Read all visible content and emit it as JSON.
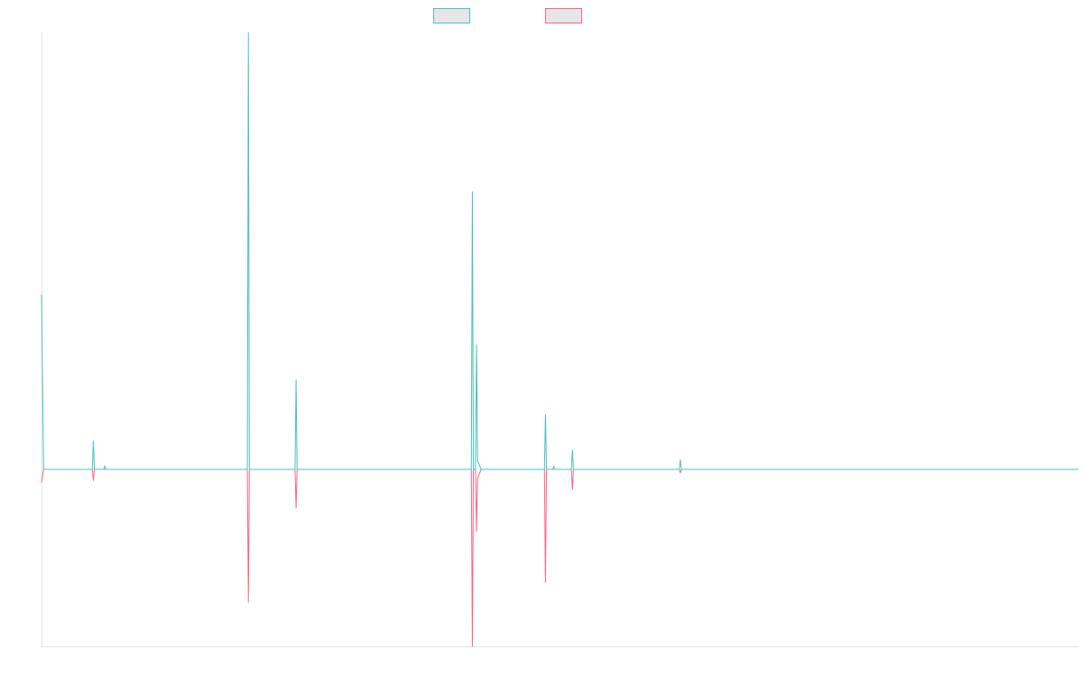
{
  "chart_data": {
    "type": "line",
    "title": "",
    "xlabel": "",
    "ylabel": "",
    "grid": false,
    "legend": "top-center",
    "x_range": [
      0,
      100
    ],
    "ylim": [
      -1,
      1
    ],
    "series": [
      {
        "color": "#4bc0c0",
        "points": [
          [
            0,
            0.4
          ],
          [
            0.2,
            0
          ],
          [
            2,
            0
          ],
          [
            4.9,
            0
          ],
          [
            5,
            0.065
          ],
          [
            5.1,
            0
          ],
          [
            6,
            0
          ],
          [
            6.1,
            0.008
          ],
          [
            6.2,
            0
          ],
          [
            19.85,
            0
          ],
          [
            19.95,
            1.0
          ],
          [
            20.05,
            0
          ],
          [
            24.45,
            0
          ],
          [
            24.55,
            0.205
          ],
          [
            24.65,
            0
          ],
          [
            41.45,
            0
          ],
          [
            41.55,
            0.635
          ],
          [
            41.65,
            0
          ],
          [
            41.85,
            0
          ],
          [
            41.95,
            0.285
          ],
          [
            42.05,
            0.02
          ],
          [
            42.4,
            0
          ],
          [
            48.5,
            0
          ],
          [
            48.6,
            0.125
          ],
          [
            48.7,
            0
          ],
          [
            49.3,
            0
          ],
          [
            49.4,
            0.007
          ],
          [
            49.5,
            0
          ],
          [
            51.1,
            0
          ],
          [
            51.2,
            0.045
          ],
          [
            51.3,
            0
          ],
          [
            61.5,
            0
          ],
          [
            61.6,
            0.022
          ],
          [
            61.7,
            0
          ],
          [
            100,
            0
          ]
        ]
      },
      {
        "color": "#ff6384",
        "points": [
          [
            0,
            -0.03
          ],
          [
            0.2,
            0
          ],
          [
            2,
            0
          ],
          [
            4.9,
            0
          ],
          [
            5,
            -0.025
          ],
          [
            5.1,
            0
          ],
          [
            19.85,
            0
          ],
          [
            19.95,
            -0.3
          ],
          [
            20.05,
            0
          ],
          [
            24.45,
            0
          ],
          [
            24.55,
            -0.087
          ],
          [
            24.65,
            0
          ],
          [
            41.45,
            0
          ],
          [
            41.55,
            -0.4
          ],
          [
            41.65,
            0
          ],
          [
            41.85,
            0
          ],
          [
            41.95,
            -0.14
          ],
          [
            42.05,
            -0.02
          ],
          [
            42.4,
            0
          ],
          [
            48.5,
            0
          ],
          [
            48.6,
            -0.255
          ],
          [
            48.7,
            0
          ],
          [
            51.1,
            0
          ],
          [
            51.2,
            -0.045
          ],
          [
            51.3,
            0
          ],
          [
            61.5,
            0
          ],
          [
            61.6,
            -0.008
          ],
          [
            61.7,
            0
          ],
          [
            100,
            0
          ]
        ]
      }
    ]
  }
}
